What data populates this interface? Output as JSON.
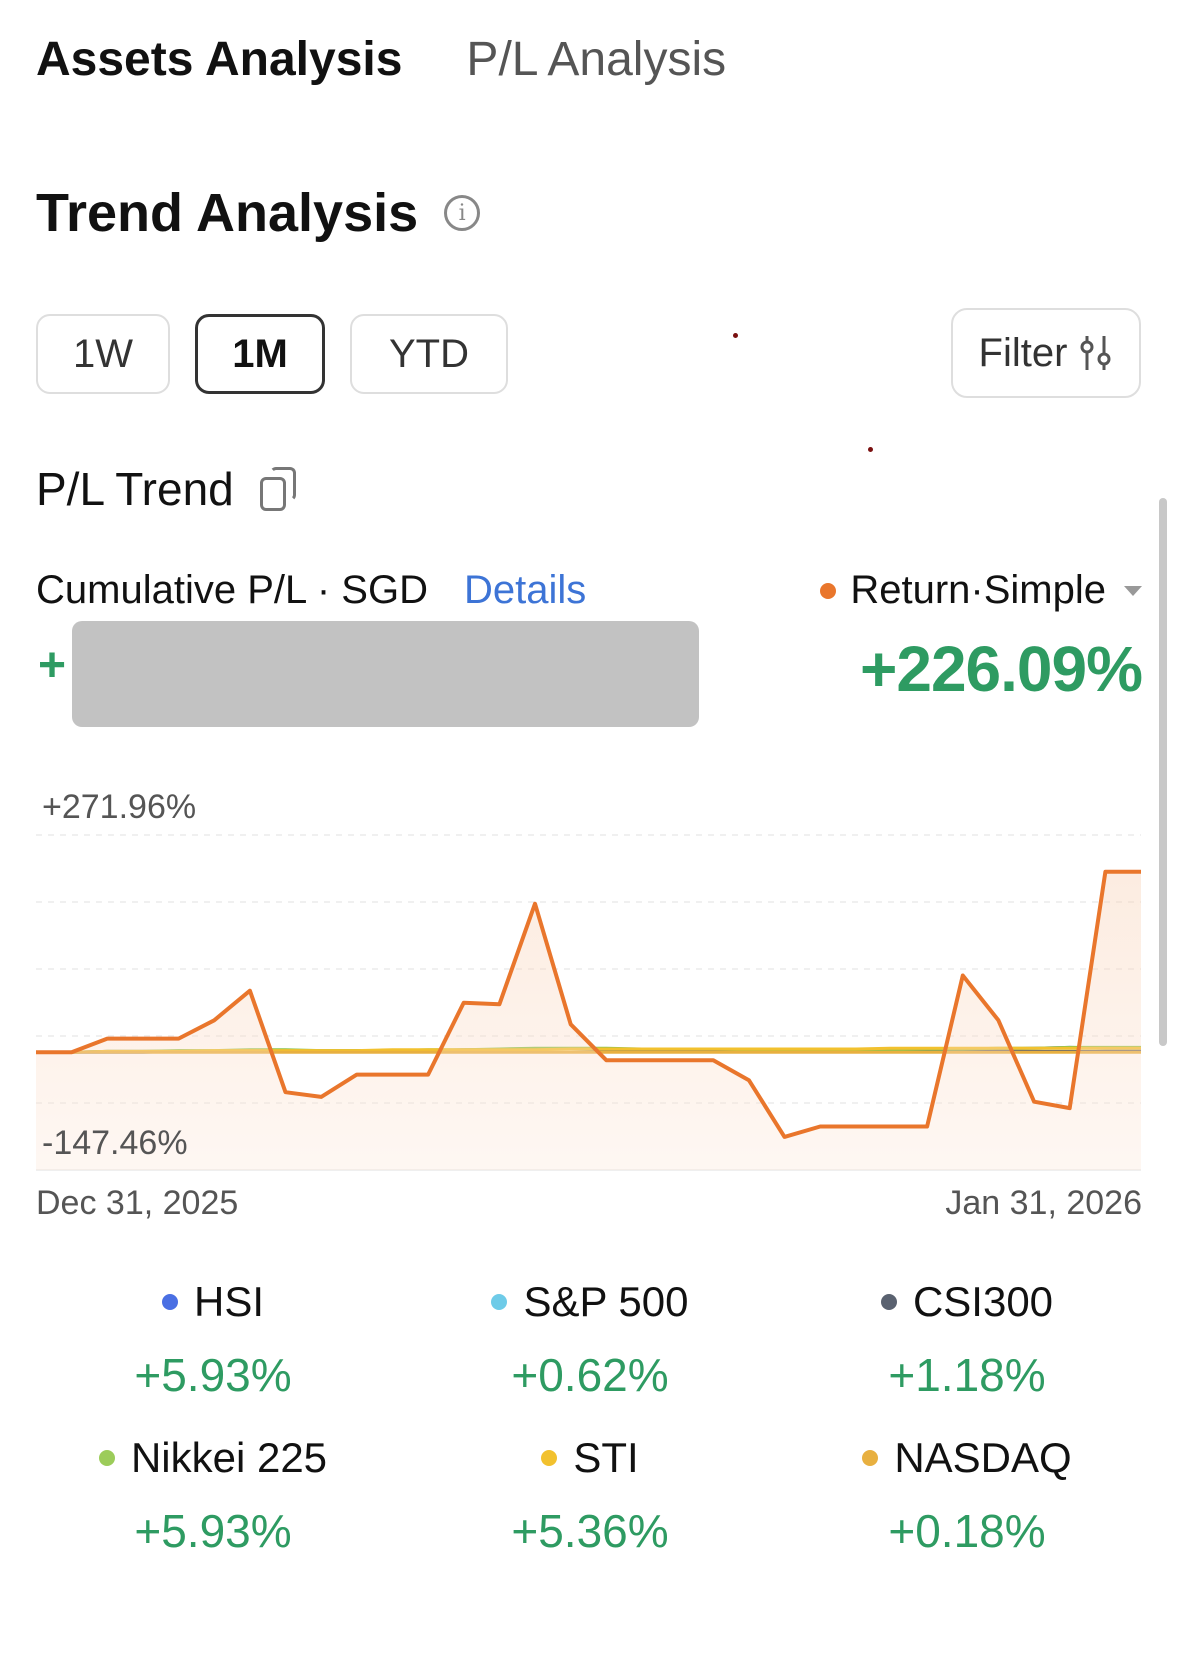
{
  "tabs": [
    {
      "label": "Assets Analysis",
      "active": true
    },
    {
      "label": "P/L Analysis",
      "active": false
    }
  ],
  "section": {
    "title": "Trend Analysis",
    "info_icon": "info-icon"
  },
  "periods": [
    {
      "label": "1W",
      "selected": false
    },
    {
      "label": "1M",
      "selected": true
    },
    {
      "label": "YTD",
      "selected": false
    }
  ],
  "filter": {
    "label": "Filter",
    "icon": "sliders-icon"
  },
  "pl_trend": {
    "title": "P/L Trend",
    "icon": "copy-icon"
  },
  "cumulative": {
    "label": "Cumulative P/L · SGD",
    "details_link": "Details",
    "sign": "+"
  },
  "return": {
    "label": "Return·Simple",
    "value": "+226.09%",
    "color": "#e9762c"
  },
  "chart_data": {
    "type": "line",
    "x_start_label": "Dec 31, 2025",
    "x_end_label": "Jan 31, 2026",
    "ymax_label": "+271.96%",
    "ymin_label": "-147.46%",
    "ylim": [
      -147.46,
      271.96
    ],
    "series": [
      {
        "color": "#e9762c",
        "values": [
          0,
          0,
          17,
          17,
          17,
          40,
          77,
          -50,
          -56,
          -28,
          -28,
          -28,
          62,
          60,
          186,
          35,
          -10,
          -10,
          -10,
          -10,
          -35,
          -106,
          -93,
          -93,
          -93,
          -93,
          96,
          40,
          -62,
          -70,
          226,
          226
        ]
      },
      {
        "color": "#3b6fe0",
        "values": [
          0,
          0,
          0,
          0,
          1,
          1,
          2,
          2,
          1,
          1,
          1,
          2,
          2,
          3,
          4,
          4,
          4,
          3,
          3,
          3,
          2,
          1,
          1,
          2,
          2,
          3,
          3,
          4,
          5,
          6,
          5,
          5
        ]
      },
      {
        "color": "#5a6270",
        "values": [
          0,
          0,
          1,
          1,
          1,
          1,
          2,
          2,
          2,
          2,
          2,
          2,
          3,
          3,
          4,
          4,
          3,
          3,
          2,
          2,
          1,
          1,
          1,
          1,
          1,
          1,
          1,
          1,
          1,
          1,
          1,
          1
        ]
      },
      {
        "color": "#8cc34a",
        "values": [
          0,
          0,
          1,
          1,
          2,
          2,
          3,
          3,
          2,
          2,
          2,
          3,
          3,
          4,
          5,
          5,
          5,
          4,
          4,
          4,
          3,
          2,
          2,
          3,
          3,
          4,
          4,
          5,
          5,
          6,
          6,
          6
        ]
      },
      {
        "color": "#f2c12e",
        "values": [
          0,
          0,
          1,
          1,
          1,
          2,
          2,
          2,
          2,
          2,
          3,
          3,
          3,
          3,
          3,
          4,
          4,
          4,
          4,
          4,
          4,
          4,
          4,
          4,
          5,
          5,
          5,
          5,
          5,
          5,
          5,
          5
        ]
      },
      {
        "color": "#e8b040",
        "values": [
          0,
          0,
          0,
          0,
          0,
          0,
          0,
          0,
          0,
          0,
          0,
          0,
          0,
          0,
          0,
          0,
          0,
          0,
          0,
          0,
          0,
          0,
          0,
          0,
          0,
          0,
          0,
          0,
          0,
          0,
          0,
          0
        ]
      }
    ]
  },
  "benchmarks": [
    {
      "name": "HSI",
      "value": "+5.93%",
      "color": "#4a6fe3"
    },
    {
      "name": "S&P 500",
      "value": "+0.62%",
      "color": "#6ecbe8"
    },
    {
      "name": "CSI300",
      "value": "+1.18%",
      "color": "#5a6270"
    },
    {
      "name": "Nikkei 225",
      "value": "+5.93%",
      "color": "#9ccc5a"
    },
    {
      "name": "STI",
      "value": "+5.36%",
      "color": "#f2c12e"
    },
    {
      "name": "NASDAQ",
      "value": "+0.18%",
      "color": "#e8b040"
    }
  ]
}
